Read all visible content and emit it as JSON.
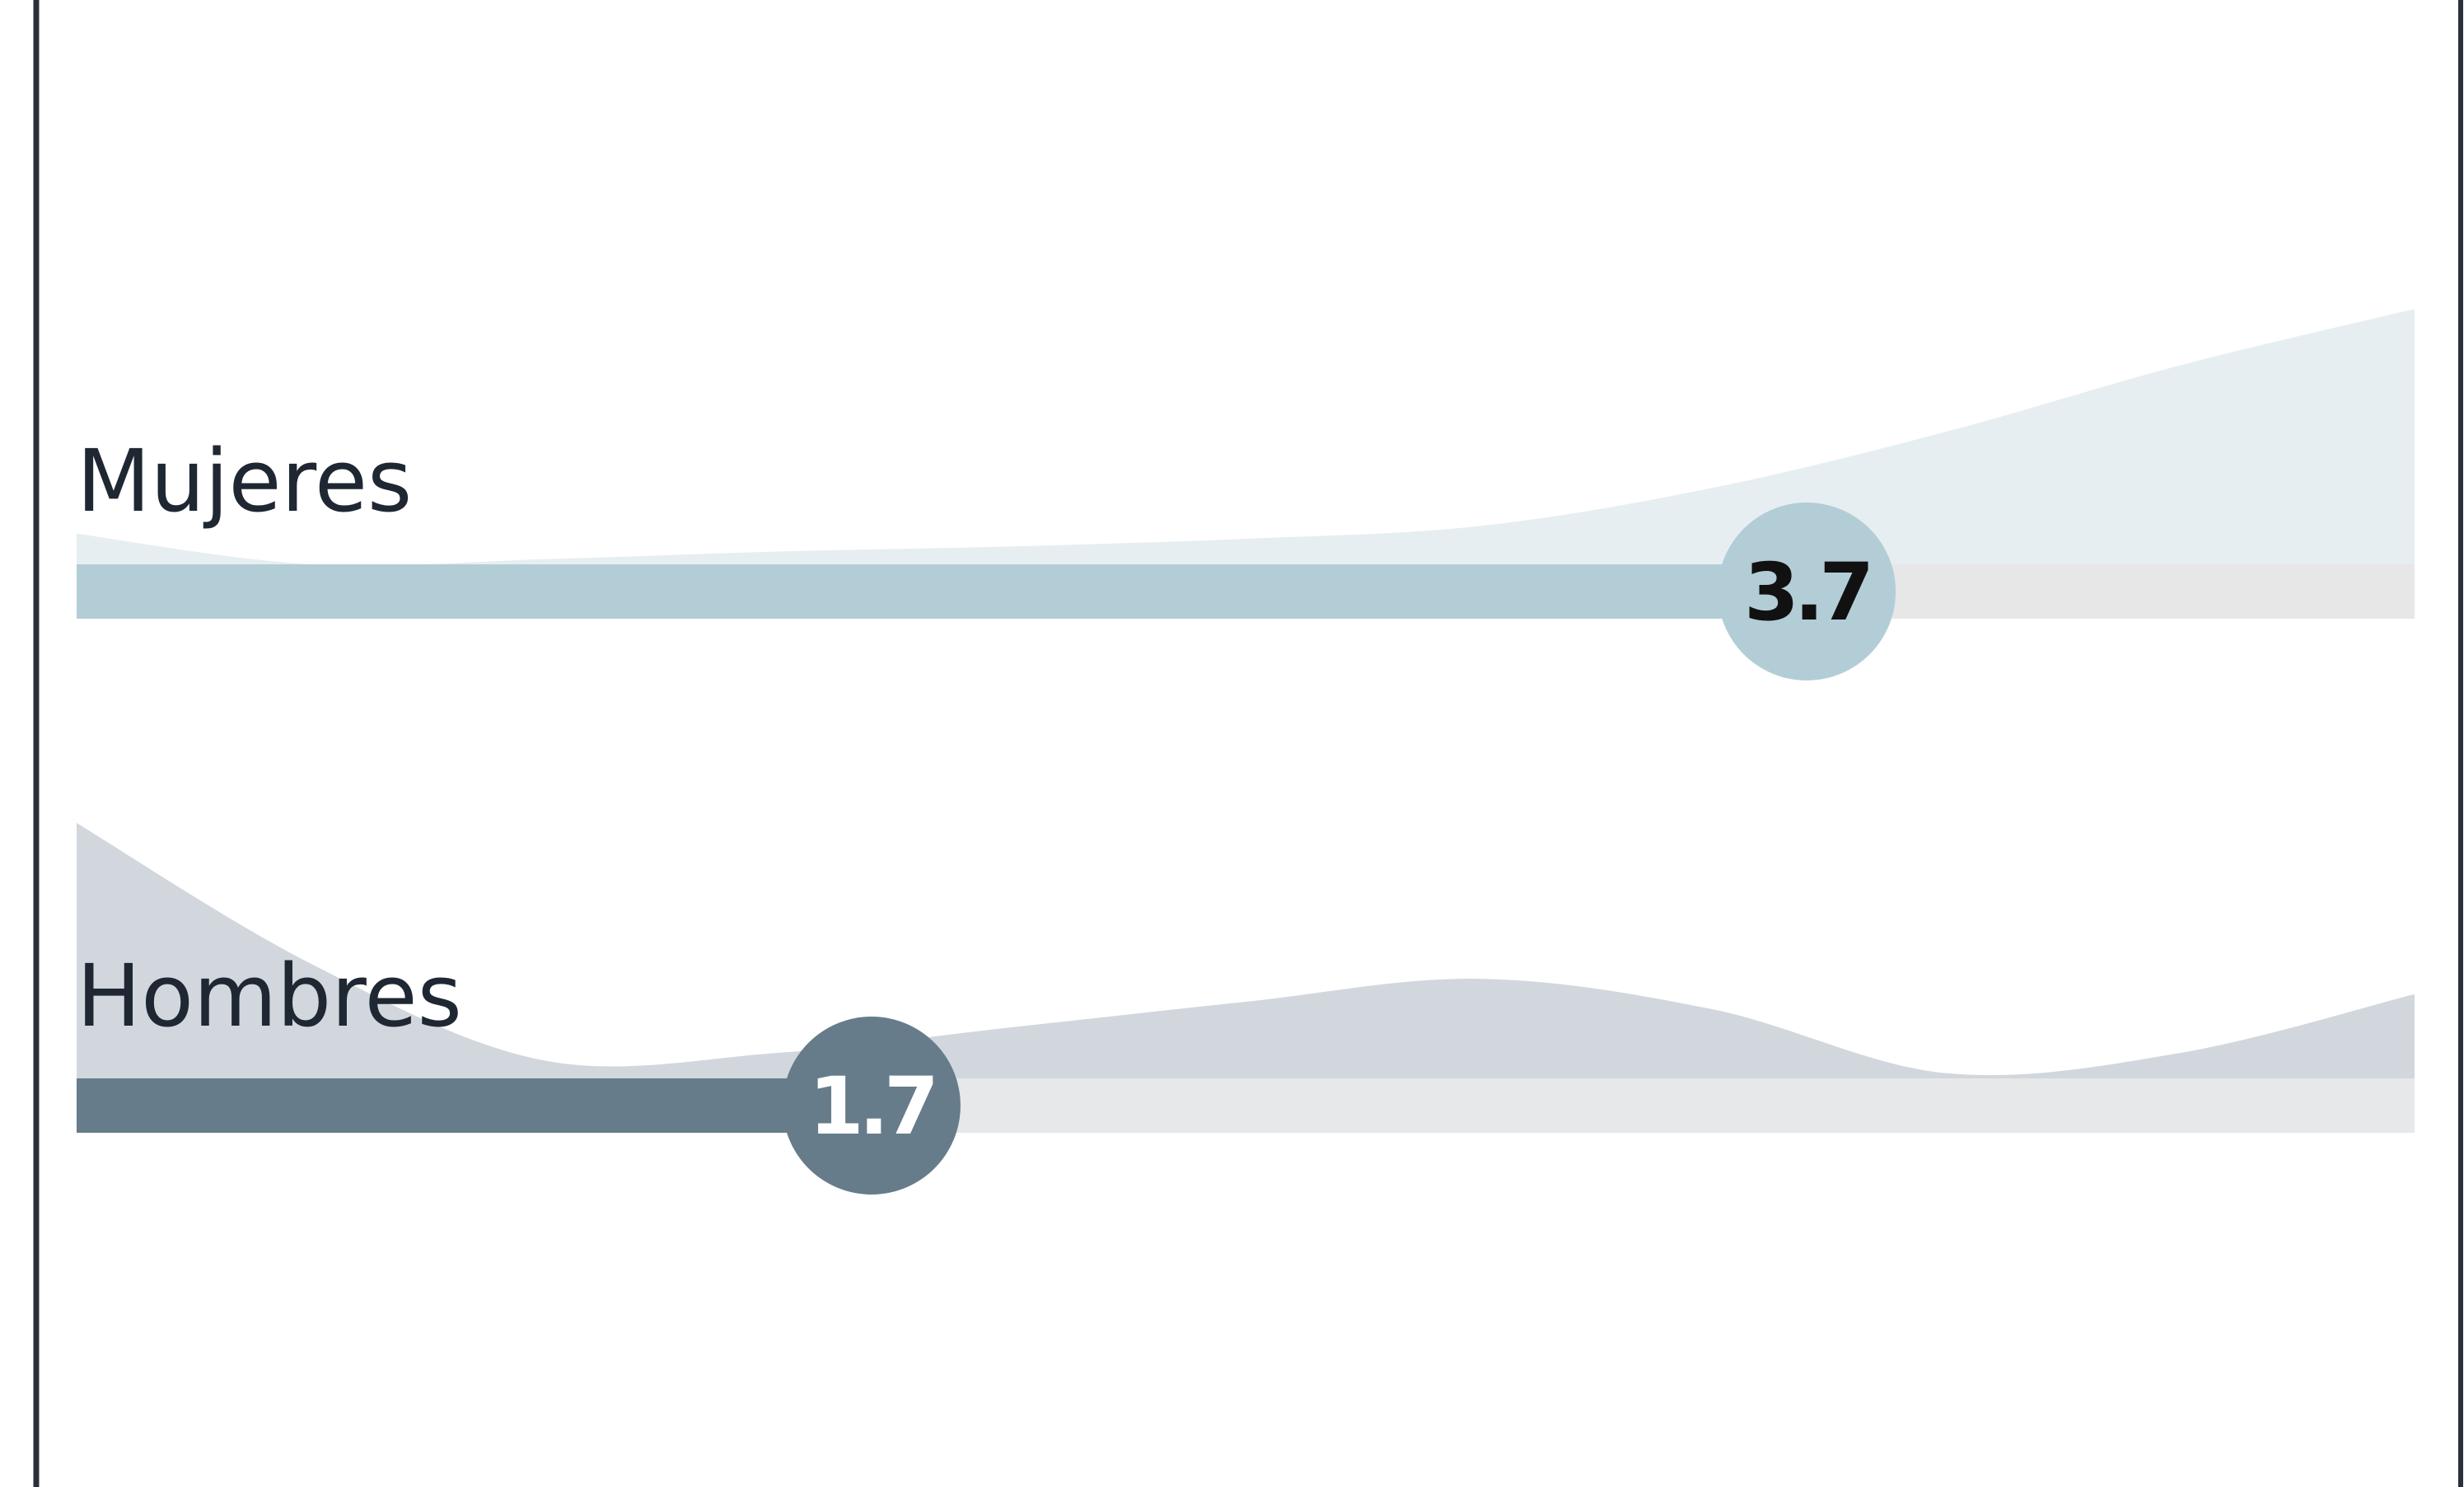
{
  "chart_data": {
    "type": "bar",
    "xlim": [
      0,
      5
    ],
    "rows": [
      {
        "label": "Mujeres",
        "value": 3.7,
        "value_text": "3.7",
        "bar_color": "#b3cdd6",
        "track_color": "#e7e7e8",
        "area_color": "#e7eef1",
        "value_text_color": "#111111",
        "distribution_x": [
          0,
          0.5,
          1,
          1.5,
          2,
          2.5,
          3,
          3.5,
          4,
          4.5,
          5
        ],
        "distribution_y": [
          0.12,
          0.0,
          0.02,
          0.05,
          0.07,
          0.1,
          0.15,
          0.3,
          0.52,
          0.78,
          1.0
        ]
      },
      {
        "label": "Hombres",
        "value": 1.7,
        "value_text": "1.7",
        "bar_color": "#667c8b",
        "track_color": "#e7e8ea",
        "area_color": "#d1d7dd",
        "value_text_color": "#ffffff",
        "distribution_x": [
          0,
          0.5,
          1,
          1.5,
          2,
          2.5,
          3,
          3.5,
          4,
          4.5,
          5
        ],
        "distribution_y": [
          1.0,
          0.45,
          0.07,
          0.1,
          0.2,
          0.3,
          0.39,
          0.27,
          0.02,
          0.1,
          0.33
        ]
      }
    ]
  }
}
